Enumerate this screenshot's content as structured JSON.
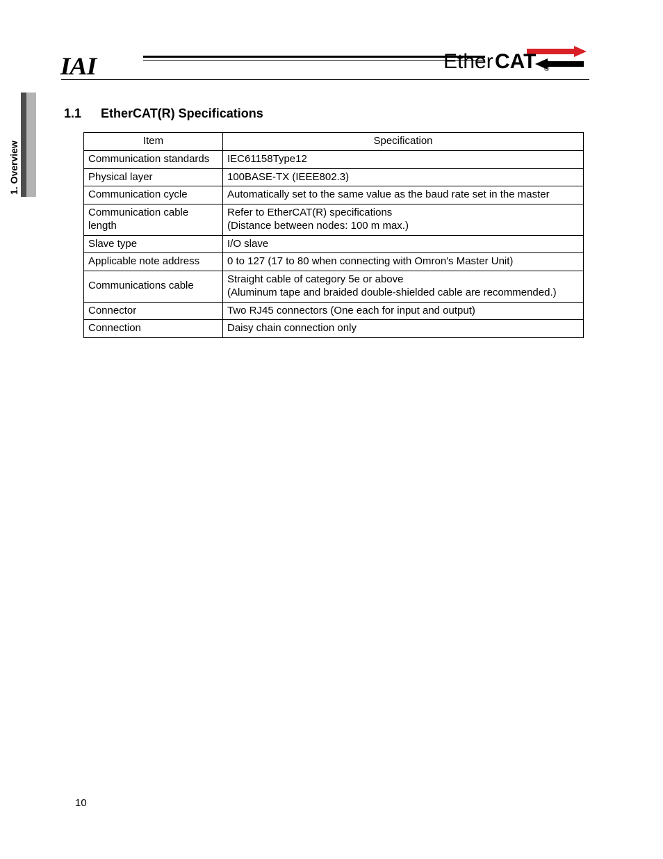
{
  "side_tab": {
    "label": "1. Overview",
    "dark_color": "#4d4d4d",
    "light_color": "#b3b3b3"
  },
  "header": {
    "left_logo": "IAI",
    "right_logo": {
      "prefix": "Ether",
      "suffix": "CAT",
      "registered": "®",
      "arrow_color": "#d92027",
      "text_color": "#000000"
    }
  },
  "section": {
    "number": "1.1",
    "title": "EtherCAT(R) Specifications"
  },
  "table": {
    "columns": [
      "Item",
      "Specification"
    ],
    "rows": [
      [
        "Communication standards",
        "IEC61158Type12"
      ],
      [
        "Physical layer",
        "100BASE-TX (IEEE802.3)"
      ],
      [
        "Communication cycle",
        "Automatically set to the same value as the baud rate set in the master"
      ],
      [
        "Communication cable length",
        "Refer to EtherCAT(R) specifications\n(Distance between nodes: 100 m max.)"
      ],
      [
        "Slave type",
        "I/O slave"
      ],
      [
        "Applicable note address",
        "0 to 127 (17 to 80 when connecting with Omron's Master Unit)"
      ],
      [
        "Communications cable",
        "Straight cable of category 5e or above\n(Aluminum tape and braided double-shielded cable are recommended.)"
      ],
      [
        "Connector",
        "Two RJ45 connectors (One each for input and output)"
      ],
      [
        "Connection",
        "Daisy chain connection only"
      ]
    ]
  },
  "page_number": "10"
}
